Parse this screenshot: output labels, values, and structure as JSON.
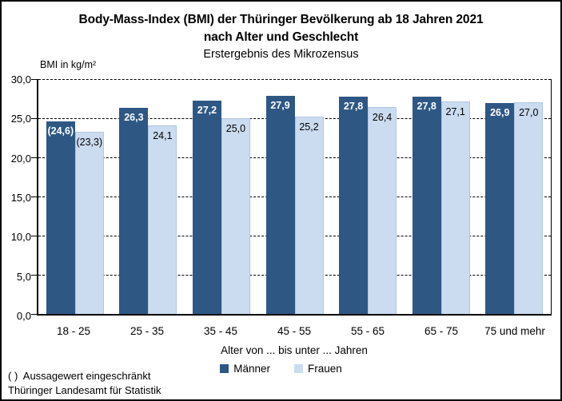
{
  "header": {
    "title_line1": "Body-Mass-Index (BMI) der Thüringer Bevölkerung ab 18 Jahren 2021",
    "title_line2": "nach Alter und Geschlecht",
    "subtitle": "Erstergebnis des Mikrozensus"
  },
  "chart_data": {
    "type": "bar",
    "title": "Body-Mass-Index (BMI) der Thüringer Bevölkerung ab 18 Jahren 2021 nach Alter und Geschlecht",
    "subtitle": "Erstergebnis des Mikrozensus",
    "ylabel": "BMI in kg/m²",
    "xlabel": "Alter von ... bis unter ... Jahren",
    "ylim": [
      0,
      30
    ],
    "ytick_step": 5,
    "yticks_top_to_bottom": [
      "30,0",
      "25,0",
      "20,0",
      "15,0",
      "10,0",
      "5,0",
      "0,0"
    ],
    "grid": "horizontal-dashed",
    "legend_position": "bottom",
    "categories": [
      "18 - 25",
      "25 - 35",
      "35 - 45",
      "45 - 55",
      "55 - 65",
      "65 - 75",
      "75 und mehr"
    ],
    "series": [
      {
        "name": "Männer",
        "color": "#2E5784",
        "values": [
          24.6,
          26.3,
          27.2,
          27.9,
          27.8,
          27.8,
          26.9
        ],
        "labels": [
          "(24,6)",
          "26,3",
          "27,2",
          "27,9",
          "27,8",
          "27,8",
          "26,9"
        ],
        "label_color": "#FFFFFF"
      },
      {
        "name": "Frauen",
        "color": "#CBDCF0",
        "values": [
          23.3,
          24.1,
          25.0,
          25.2,
          26.4,
          27.1,
          27.0
        ],
        "labels": [
          "(23,3)",
          "24,1",
          "25,0",
          "25,2",
          "26,4",
          "27,1",
          "27,0"
        ],
        "label_color": "#000000"
      }
    ]
  },
  "footnotes": {
    "note": "( )  Aussagewert eingeschränkt",
    "source": "Thüringer Landesamt für Statistik"
  }
}
